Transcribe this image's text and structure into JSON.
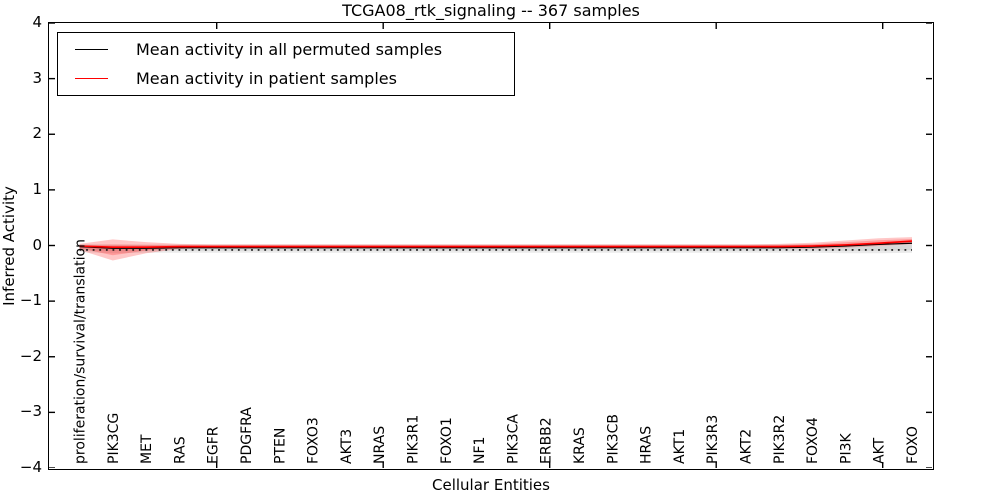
{
  "title": "TCGA08_rtk_signaling -- 367 samples",
  "legend": {
    "items": [
      {
        "label": "Mean activity in all permuted samples",
        "color": "#000000"
      },
      {
        "label": "Mean activity in patient samples",
        "color": "#ff0000"
      }
    ]
  },
  "chart_data": {
    "type": "line",
    "title": "TCGA08_rtk_signaling -- 367 samples",
    "xlabel": "Cellular Entities",
    "ylabel": "Inferred Activity",
    "ylim": [
      -4,
      4
    ],
    "grid": false,
    "legend_position": "upper left",
    "y_ticks": [
      "4",
      "3",
      "2",
      "1",
      "0",
      "−1",
      "−2",
      "−3",
      "−4"
    ],
    "y_tick_values": [
      4,
      3,
      2,
      1,
      0,
      -1,
      -2,
      -3,
      -4
    ],
    "categories": [
      "proliferation/survival/translation",
      "PIK3CG",
      "MET",
      "RAS",
      "EGFR",
      "PDGFRA",
      "PTEN",
      "FOXO3",
      "AKT3",
      "NRAS",
      "PIK3R1",
      "FOXO1",
      "NF1",
      "PIK3CA",
      "ERBB2",
      "KRAS",
      "PIK3CB",
      "HRAS",
      "AKT1",
      "PIK3R3",
      "AKT2",
      "PIK3R2",
      "FOXO4",
      "PI3K",
      "AKT",
      "FOXO"
    ],
    "x_major_tick_indices": [
      4,
      9,
      14,
      19,
      24
    ],
    "series": [
      {
        "name": "Mean activity in all permuted samples",
        "color": "#000000",
        "style": "solid",
        "width": 1.2,
        "values": [
          -0.02,
          -0.05,
          -0.05,
          -0.04,
          -0.04,
          -0.04,
          -0.04,
          -0.04,
          -0.04,
          -0.04,
          -0.04,
          -0.04,
          -0.04,
          -0.04,
          -0.04,
          -0.04,
          -0.04,
          -0.04,
          -0.04,
          -0.04,
          -0.04,
          -0.04,
          -0.03,
          -0.01,
          0.02,
          0.04
        ]
      },
      {
        "name": "black dotted reference line",
        "color": "#111111",
        "style": "dotted",
        "width": 1.6,
        "values": [
          -0.08,
          -0.08,
          -0.08,
          -0.08,
          -0.08,
          -0.08,
          -0.08,
          -0.08,
          -0.08,
          -0.08,
          -0.08,
          -0.08,
          -0.08,
          -0.08,
          -0.08,
          -0.08,
          -0.08,
          -0.08,
          -0.08,
          -0.08,
          -0.08,
          -0.08,
          -0.08,
          -0.08,
          -0.08,
          -0.08
        ]
      },
      {
        "name": "Mean activity in patient samples",
        "color": "#ff0000",
        "style": "solid",
        "width": 1.7,
        "values": [
          -0.01,
          -0.03,
          -0.03,
          -0.02,
          -0.02,
          -0.02,
          -0.02,
          -0.02,
          -0.02,
          -0.02,
          -0.02,
          -0.02,
          -0.02,
          -0.02,
          -0.02,
          -0.02,
          -0.02,
          -0.02,
          -0.02,
          -0.02,
          -0.02,
          -0.02,
          -0.01,
          0.01,
          0.04,
          0.08
        ]
      }
    ],
    "bands": [
      {
        "name": "permuted samples range",
        "color": "#888888",
        "opacity": 0.18,
        "upper": [
          0.03,
          0.02,
          0.02,
          0.02,
          0.02,
          0.02,
          0.02,
          0.02,
          0.02,
          0.02,
          0.02,
          0.02,
          0.02,
          0.02,
          0.02,
          0.02,
          0.02,
          0.02,
          0.02,
          0.02,
          0.02,
          0.02,
          0.02,
          0.03,
          0.04,
          0.06
        ],
        "lower": [
          -0.12,
          -0.14,
          -0.13,
          -0.13,
          -0.13,
          -0.13,
          -0.13,
          -0.13,
          -0.13,
          -0.13,
          -0.13,
          -0.13,
          -0.13,
          -0.13,
          -0.13,
          -0.13,
          -0.13,
          -0.13,
          -0.13,
          -0.13,
          -0.13,
          -0.13,
          -0.13,
          -0.14,
          -0.14,
          -0.13
        ]
      },
      {
        "name": "patient samples range",
        "color": "#ff0000",
        "opacity": 0.22,
        "upper": [
          0.03,
          0.11,
          0.06,
          0.03,
          0.02,
          0.02,
          0.02,
          0.02,
          0.02,
          0.02,
          0.02,
          0.02,
          0.02,
          0.02,
          0.02,
          0.02,
          0.02,
          0.02,
          0.02,
          0.02,
          0.02,
          0.03,
          0.05,
          0.09,
          0.13,
          0.15
        ],
        "lower": [
          -0.08,
          -0.27,
          -0.14,
          -0.06,
          -0.04,
          -0.04,
          -0.04,
          -0.04,
          -0.04,
          -0.04,
          -0.04,
          -0.04,
          -0.04,
          -0.04,
          -0.04,
          -0.04,
          -0.04,
          -0.04,
          -0.04,
          -0.04,
          -0.04,
          -0.05,
          -0.06,
          -0.04,
          -0.01,
          0.02
        ]
      }
    ]
  }
}
